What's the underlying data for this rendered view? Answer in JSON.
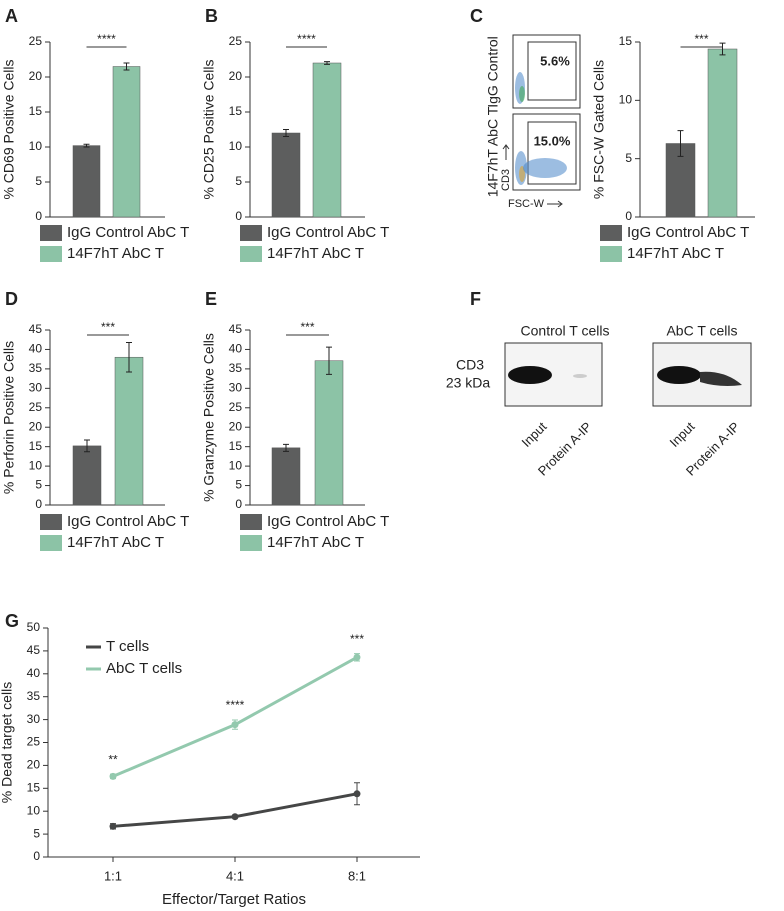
{
  "chart_data": [
    {
      "type": "bar",
      "panel": "A",
      "ylabel": "% CD69 Positive Cells",
      "ylim": [
        0,
        25
      ],
      "yticks": [
        0,
        5,
        10,
        15,
        20,
        25
      ],
      "significance": "****",
      "series": [
        {
          "name": "IgG Control AbC T",
          "color": "#5d5e5e",
          "values": [
            10.2
          ],
          "errors": [
            0.2
          ]
        },
        {
          "name": "14F7hT AbC T",
          "color": "#8cc3a6",
          "values": [
            21.5
          ],
          "errors": [
            0.5
          ]
        }
      ]
    },
    {
      "type": "bar",
      "panel": "B",
      "ylabel": "% CD25 Positive Cells",
      "ylim": [
        0,
        25
      ],
      "yticks": [
        0,
        5,
        10,
        15,
        20,
        25
      ],
      "significance": "****",
      "series": [
        {
          "name": "IgG Control AbC T",
          "color": "#5d5e5e",
          "values": [
            12.0
          ],
          "errors": [
            0.5
          ]
        },
        {
          "name": "14F7hT AbC T",
          "color": "#8cc3a6",
          "values": [
            22.0
          ],
          "errors": [
            0.2
          ]
        }
      ]
    },
    {
      "type": "bar",
      "panel": "C",
      "ylabel": "% FSC-W Gated Cells",
      "ylim": [
        0,
        15
      ],
      "yticks": [
        0,
        5,
        10,
        15
      ],
      "significance": "***",
      "series": [
        {
          "name": "IgG Control AbC T",
          "color": "#5d5e5e",
          "values": [
            6.3
          ],
          "errors": [
            1.1
          ]
        },
        {
          "name": "14F7hT AbC T",
          "color": "#8cc3a6",
          "values": [
            14.4
          ],
          "errors": [
            0.5
          ]
        }
      ]
    },
    {
      "type": "bar",
      "panel": "D",
      "ylabel": "% Perforin Positive Cells",
      "ylim": [
        0,
        45
      ],
      "yticks": [
        0,
        5,
        10,
        15,
        20,
        25,
        30,
        35,
        40,
        45
      ],
      "significance": "***",
      "series": [
        {
          "name": "IgG Control AbC T",
          "color": "#5d5e5e",
          "values": [
            15.2
          ],
          "errors": [
            1.5
          ]
        },
        {
          "name": "14F7hT AbC T",
          "color": "#8cc3a6",
          "values": [
            38.0
          ],
          "errors": [
            3.8
          ]
        }
      ]
    },
    {
      "type": "bar",
      "panel": "E",
      "ylabel": "% Granzyme Positive Cells",
      "ylim": [
        0,
        45
      ],
      "yticks": [
        0,
        5,
        10,
        15,
        20,
        25,
        30,
        35,
        40,
        45
      ],
      "significance": "***",
      "series": [
        {
          "name": "IgG Control AbC T",
          "color": "#5d5e5e",
          "values": [
            14.7
          ],
          "errors": [
            0.9
          ]
        },
        {
          "name": "14F7hT AbC T",
          "color": "#8cc3a6",
          "values": [
            37.1
          ],
          "errors": [
            3.5
          ]
        }
      ]
    },
    {
      "type": "line",
      "panel": "G",
      "xlabel": "Effector/Target Ratios",
      "ylabel": "% Dead target cells",
      "categories": [
        "1:1",
        "4:1",
        "8:1"
      ],
      "ylim": [
        0,
        50
      ],
      "yticks": [
        0,
        5,
        10,
        15,
        20,
        25,
        30,
        35,
        40,
        45,
        50
      ],
      "annotations": [
        "**",
        "****",
        "***"
      ],
      "series": [
        {
          "name": "T cells",
          "color": "#454646",
          "values": [
            6.7,
            8.8,
            13.8
          ],
          "errors": [
            0.6,
            0.3,
            2.4
          ]
        },
        {
          "name": "AbC T cells",
          "color": "#93c9ae",
          "values": [
            17.6,
            28.9,
            43.6
          ],
          "errors": [
            0.5,
            1.0,
            0.8
          ]
        }
      ]
    }
  ],
  "flow": {
    "rows": [
      {
        "label": "IgG Control",
        "gate": "5.6%"
      },
      {
        "label": "14F7hT AbC T",
        "gate": "15.0%"
      }
    ],
    "y_axis": "CD3",
    "x_axis": "FSC-W"
  },
  "blot": {
    "panel": "F",
    "marker": "CD3",
    "size": "23 kDa",
    "groups": [
      {
        "title": "Control T cells",
        "lanes": [
          "Input",
          "Protein A-IP"
        ]
      },
      {
        "title": "AbC T cells",
        "lanes": [
          "Input",
          "Protein A-IP"
        ]
      }
    ]
  }
}
